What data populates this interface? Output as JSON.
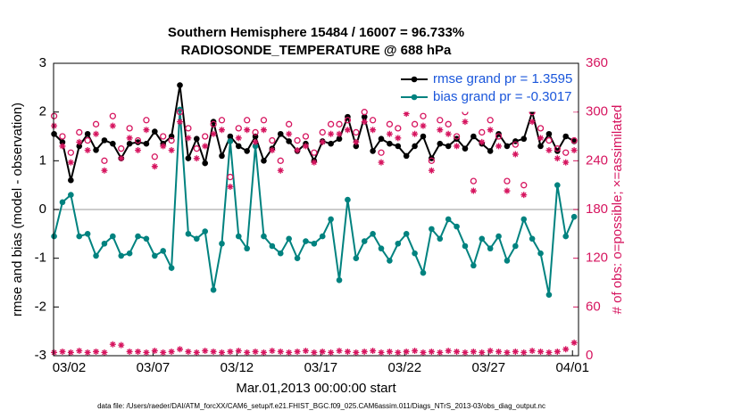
{
  "chart_data": {
    "type": "line",
    "title": "Southern Hemisphere 15484 / 16007 = 96.733%",
    "subtitle": "RADIOSONDE_TEMPERATURE @ 688 hPa",
    "x_label": "Mar.01,2013 00:00:00 start",
    "y_label": "rmse and bias (model - observation)",
    "y2_label": "# of obs: o=possible; ×=assimilated",
    "footer": "data file: /Users/raeder/DAI/ATM_forcXX/CAM6_setup/f.e21.FHIST_BGC.f09_025.CAM6assim.011/Diags_NTrS_2013-03/obs_diag_output.nc",
    "x": [
      0.1,
      0.6,
      1.1,
      1.6,
      2.1,
      2.6,
      3.1,
      3.6,
      4.1,
      4.6,
      5.1,
      5.6,
      6.1,
      6.6,
      7.1,
      7.6,
      8.1,
      8.6,
      9.1,
      9.6,
      10.1,
      10.6,
      11.1,
      11.6,
      12.1,
      12.6,
      13.1,
      13.6,
      14.1,
      14.6,
      15.1,
      15.6,
      16.1,
      16.6,
      17.1,
      17.6,
      18.1,
      18.6,
      19.1,
      19.6,
      20.1,
      20.6,
      21.1,
      21.6,
      22.1,
      22.6,
      23.1,
      23.6,
      24.1,
      24.6,
      25.1,
      25.6,
      26.1,
      26.6,
      27.1,
      27.6,
      28.1,
      28.6,
      29.1,
      29.6,
      30.1,
      30.6,
      31.1
    ],
    "xlim": [
      0.07,
      31.36
    ],
    "xticks": [
      {
        "value": 1,
        "label": "03/02"
      },
      {
        "value": 6,
        "label": "03/07"
      },
      {
        "value": 11,
        "label": "03/12"
      },
      {
        "value": 16,
        "label": "03/17"
      },
      {
        "value": 21,
        "label": "03/22"
      },
      {
        "value": 26,
        "label": "03/27"
      },
      {
        "value": 31,
        "label": "04/01"
      }
    ],
    "ylim": [
      -3,
      3
    ],
    "yticks": [
      -3,
      -2,
      -1,
      0,
      1,
      2,
      3
    ],
    "y2lim": [
      0,
      360
    ],
    "y2ticks": [
      0,
      60,
      120,
      180,
      240,
      300,
      360
    ],
    "legend": "upper right",
    "series": [
      {
        "name": "rmse grand pr = 1.3595",
        "color": "#000000",
        "marker": "dot",
        "values": [
          1.55,
          1.38,
          0.6,
          1.3,
          1.55,
          1.22,
          1.42,
          1.35,
          1.05,
          1.35,
          1.38,
          1.35,
          1.6,
          1.35,
          1.5,
          2.55,
          1.05,
          1.45,
          0.95,
          1.8,
          1.1,
          1.5,
          1.3,
          1.2,
          1.5,
          1.0,
          1.25,
          1.55,
          1.4,
          1.2,
          1.35,
          1.0,
          1.4,
          1.35,
          1.45,
          1.9,
          1.3,
          1.9,
          1.2,
          1.45,
          1.35,
          1.3,
          1.1,
          1.3,
          1.5,
          1.05,
          1.35,
          1.3,
          1.45,
          1.25,
          1.5,
          1.35,
          1.2,
          1.55,
          1.3,
          1.4,
          1.45,
          2.0,
          1.3,
          1.55,
          1.2,
          1.5,
          1.4
        ]
      },
      {
        "name": "bias grand pr = -0.3017",
        "color": "#00827f",
        "marker": "dot",
        "values": [
          -0.55,
          0.15,
          0.3,
          -0.55,
          -0.5,
          -0.95,
          -0.7,
          -0.55,
          -0.95,
          -0.9,
          -0.55,
          -0.6,
          -0.95,
          -0.85,
          -1.2,
          2.05,
          -0.5,
          -0.6,
          -0.45,
          -1.65,
          -0.7,
          1.4,
          -0.55,
          -0.8,
          1.3,
          -0.55,
          -0.75,
          -0.9,
          -0.6,
          -1.0,
          -0.65,
          -0.7,
          -0.55,
          -0.2,
          -1.45,
          0.2,
          -1.0,
          -0.65,
          -0.5,
          -0.8,
          -1.05,
          -0.7,
          -0.5,
          -0.9,
          -1.3,
          -0.4,
          -0.6,
          -0.2,
          -0.35,
          -0.75,
          -1.15,
          -0.6,
          -0.8,
          -0.55,
          -1.05,
          -0.75,
          -0.2,
          -0.6,
          -0.9,
          -1.75,
          0.5,
          -0.55,
          -0.15
        ]
      },
      {
        "color": "#d6155f",
        "marker": "circle",
        "axis": "y2",
        "values": [
          295,
          270,
          250,
          275,
          265,
          285,
          240,
          295,
          255,
          280,
          265,
          290,
          245,
          270,
          265,
          300,
          280,
          255,
          270,
          285,
          290,
          220,
          280,
          290,
          275,
          290,
          265,
          240,
          285,
          265,
          270,
          250,
          275,
          285,
          285,
          290,
          275,
          300,
          290,
          250,
          285,
          280,
          310,
          285,
          295,
          240,
          290,
          285,
          270,
          300,
          215,
          275,
          290,
          270,
          215,
          260,
          210,
          300,
          280,
          265,
          255,
          250,
          265
        ]
      },
      {
        "color": "#d6155f",
        "marker": "asterisk",
        "axis": "y2",
        "values": [
          283,
          258,
          238,
          263,
          253,
          273,
          228,
          283,
          243,
          268,
          253,
          278,
          233,
          258,
          253,
          288,
          268,
          243,
          258,
          273,
          278,
          208,
          268,
          278,
          263,
          278,
          253,
          228,
          273,
          253,
          258,
          238,
          263,
          273,
          273,
          278,
          263,
          288,
          278,
          238,
          273,
          268,
          298,
          273,
          283,
          228,
          278,
          273,
          258,
          288,
          203,
          263,
          278,
          258,
          203,
          248,
          198,
          288,
          268,
          253,
          243,
          238,
          253
        ]
      },
      {
        "color": "#d6155f",
        "marker": "asterisk",
        "axis": "y2",
        "values": [
          4,
          5,
          4,
          6,
          4,
          5,
          4,
          14,
          13,
          5,
          5,
          4,
          6,
          4,
          5,
          8,
          5,
          4,
          6,
          5,
          4,
          5,
          6,
          4,
          5,
          4,
          6,
          5,
          4,
          5,
          6,
          4,
          5,
          4,
          6,
          5,
          4,
          5,
          6,
          4,
          5,
          4,
          5,
          6,
          4,
          5,
          4,
          6,
          5,
          4,
          5,
          4,
          6,
          5,
          4,
          5,
          4,
          6,
          5,
          4,
          5,
          8,
          16
        ]
      }
    ]
  }
}
